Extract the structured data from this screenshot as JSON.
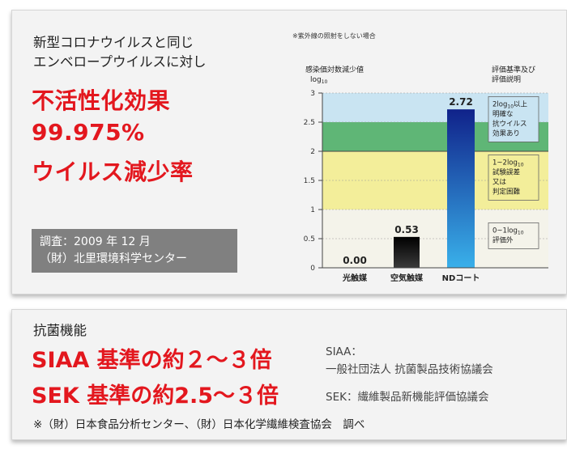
{
  "colors": {
    "accent_red": "#e3171e",
    "survey_bg": "#808080",
    "bar_dark": "#111111",
    "bar_blue_top": "#10228a",
    "bar_blue_bottom": "#39b0ea",
    "band_blue": "#c9e4f2",
    "band_green": "#5fb676",
    "band_yellow": "#f3ee9a",
    "band_cream": "#f4f3ea"
  },
  "card1": {
    "intro": [
      "新型コロナウイルスと同じ",
      "エンベロープウイルスに対し"
    ],
    "headline": [
      "不活性化効果",
      "99.975%",
      "ウイルス減少率"
    ],
    "survey": [
      "調査：2009 年 12 月",
      "（財）北里環境科学センター"
    ]
  },
  "chart_data": {
    "type": "bar",
    "note": "※紫外線の照射をしない場合",
    "ylabel": "感染価対数減少値",
    "ylabel_unit": "log",
    "ylabel_unit_sub": "10",
    "ylim": [
      0,
      3
    ],
    "yticks": [
      "0",
      "0.5",
      "1",
      "1.5",
      "2",
      "2.5",
      "3"
    ],
    "categories": [
      "光触媒",
      "空気触媒",
      "NDコート"
    ],
    "values": [
      0.0,
      0.53,
      2.72
    ],
    "value_labels": [
      "0.00",
      "0.53",
      "2.72"
    ],
    "legend_title": [
      "評価基準及び",
      "評価説明"
    ],
    "bands": [
      {
        "from": 0,
        "to": 1,
        "color": "#f4f3ea"
      },
      {
        "from": 1,
        "to": 2,
        "color": "#f3ee9a"
      },
      {
        "from": 2,
        "to": 2.5,
        "color": "#5fb676"
      },
      {
        "from": 2.5,
        "to": 3,
        "color": "#c9e4f2"
      }
    ],
    "evaluations": [
      {
        "lines": [
          "2log",
          "明確な",
          "抗ウイルス",
          "効果あり"
        ],
        "sub": "10",
        "suffix": "以上",
        "color": "#c9e4f2",
        "y_center": 2.55
      },
      {
        "lines": [
          "1~2log",
          "試験誤差",
          "又は",
          "判定困難"
        ],
        "sub": "10",
        "suffix": "",
        "color": "#f3ee9a",
        "y_center": 1.55
      },
      {
        "lines": [
          "0~1log",
          "評価外"
        ],
        "sub": "10",
        "suffix": "",
        "color": "#f4f3ea",
        "y_center": 0.55
      }
    ]
  },
  "card2": {
    "title": "抗菌機能",
    "siaa_line": "SIAA 基準の約２～３倍",
    "sek_line": "SEK 基準の約2.5～３倍",
    "siaa_label": "SIAA：",
    "siaa_org": "一般社団法人 抗菌製品技術協議会",
    "sek_label": "SEK：繊維製品新機能評価協議会",
    "note": "※（財）日本食品分析センター、（財）日本化学繊維検査協会　調べ"
  }
}
